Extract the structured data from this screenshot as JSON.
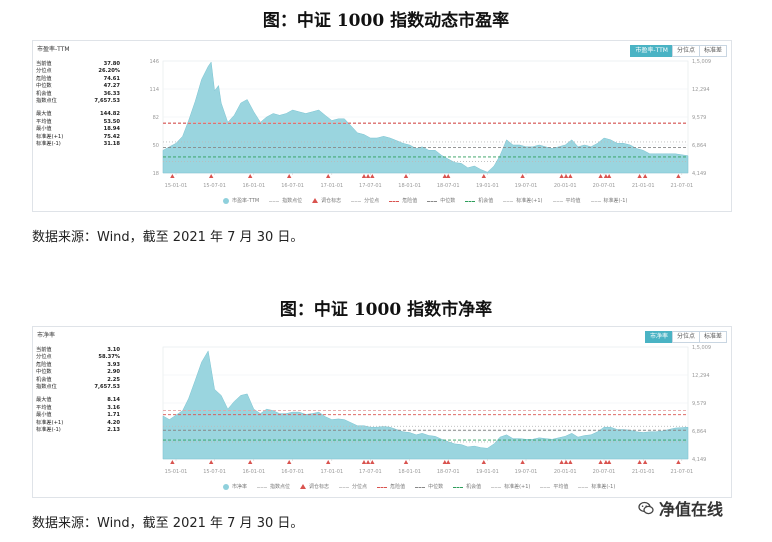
{
  "figures": [
    {
      "title": "图：中证 1000 指数动态市盈率",
      "panel_label": "市盈率-TTM",
      "buttons": [
        {
          "label": "市盈率-TTM",
          "active": true
        },
        {
          "label": "分位点",
          "active": false
        },
        {
          "label": "标准差",
          "active": false
        }
      ],
      "stats_top": [
        {
          "label": "当前值",
          "value": "37.80"
        },
        {
          "label": "分位点",
          "value": "26.20%"
        },
        {
          "label": "危险值",
          "value": "74.61"
        },
        {
          "label": "中位数",
          "value": "47.27"
        },
        {
          "label": "机会值",
          "value": "36.33"
        },
        {
          "label": "指数点位",
          "value": "7,657.53"
        }
      ],
      "stats_bottom": [
        {
          "label": "最大值",
          "value": "144.82"
        },
        {
          "label": "平均值",
          "value": "53.50"
        },
        {
          "label": "最小值",
          "value": "18.94"
        },
        {
          "label": "标准差(+1)",
          "value": "75.42"
        },
        {
          "label": "标准差(-1)",
          "value": "31.18"
        }
      ],
      "legend": [
        "市盈率-TTM",
        "指数点位",
        "调仓标志",
        "分位点",
        "危险值",
        "中位数",
        "机会值",
        "标准差(+1)",
        "平均值",
        "标准差(-1)"
      ],
      "source": "数据来源：Wind，截至 2021 年 7 月 30 日。"
    },
    {
      "title": "图：中证 1000 指数市净率",
      "panel_label": "市净率",
      "buttons": [
        {
          "label": "市净率",
          "active": true
        },
        {
          "label": "分位点",
          "active": false
        },
        {
          "label": "标准差",
          "active": false
        }
      ],
      "stats_top": [
        {
          "label": "当前值",
          "value": "3.10"
        },
        {
          "label": "分位点",
          "value": "58.37%"
        },
        {
          "label": "危险值",
          "value": "3.93"
        },
        {
          "label": "中位数",
          "value": "2.90"
        },
        {
          "label": "机会值",
          "value": "2.25"
        },
        {
          "label": "指数点位",
          "value": "7,657.53"
        }
      ],
      "stats_bottom": [
        {
          "label": "最大值",
          "value": "8.14"
        },
        {
          "label": "平均值",
          "value": "3.16"
        },
        {
          "label": "最小值",
          "value": "1.71"
        },
        {
          "label": "标准差(+1)",
          "value": "4.20"
        },
        {
          "label": "标准差(-1)",
          "value": "2.13"
        }
      ],
      "legend": [
        "市净率",
        "指数点位",
        "调仓标志",
        "分位点",
        "危险值",
        "中位数",
        "机会值",
        "标准差(+1)",
        "平均值",
        "标准差(-1)"
      ],
      "source": "数据来源：Wind，截至 2021 年 7 月 30 日。"
    }
  ],
  "chart_data": [
    {
      "type": "area",
      "series": [
        {
          "name": "市盈率-TTM",
          "color": "#8fd0dc"
        }
      ],
      "x_ticks": [
        "15-01-01",
        "15-07-01",
        "16-01-01",
        "16-07-01",
        "17-01-01",
        "17-07-01",
        "18-01-01",
        "18-07-01",
        "19-01-01",
        "19-07-01",
        "20-01-01",
        "20-07-01",
        "21-01-01",
        "21-07-01"
      ],
      "x_range": [
        "2014-11-01",
        "2021-07-30"
      ],
      "y_left_ticks": [
        "146",
        "114",
        "82",
        "50",
        "18"
      ],
      "y_left_range": [
        18,
        146
      ],
      "y_right_ticks": [
        "1,5,009",
        "12,294",
        "9,579",
        "6,864",
        "4,149"
      ],
      "points": [
        [
          "2014-11-01",
          44
        ],
        [
          "2014-12-01",
          48
        ],
        [
          "2015-01-01",
          52
        ],
        [
          "2015-02-01",
          60
        ],
        [
          "2015-03-01",
          78
        ],
        [
          "2015-04-01",
          100
        ],
        [
          "2015-05-01",
          125
        ],
        [
          "2015-06-01",
          140
        ],
        [
          "2015-06-15",
          144.82
        ],
        [
          "2015-07-01",
          112
        ],
        [
          "2015-07-20",
          118
        ],
        [
          "2015-08-01",
          98
        ],
        [
          "2015-09-01",
          76
        ],
        [
          "2015-10-01",
          84
        ],
        [
          "2015-11-01",
          98
        ],
        [
          "2015-12-01",
          102
        ],
        [
          "2016-01-01",
          88
        ],
        [
          "2016-02-01",
          76
        ],
        [
          "2016-03-01",
          82
        ],
        [
          "2016-04-01",
          86
        ],
        [
          "2016-05-01",
          84
        ],
        [
          "2016-06-01",
          86
        ],
        [
          "2016-07-01",
          90
        ],
        [
          "2016-08-01",
          88
        ],
        [
          "2016-09-01",
          86
        ],
        [
          "2016-10-01",
          88
        ],
        [
          "2016-11-01",
          90
        ],
        [
          "2016-12-01",
          84
        ],
        [
          "2017-01-01",
          78
        ],
        [
          "2017-02-01",
          80
        ],
        [
          "2017-03-01",
          80
        ],
        [
          "2017-04-01",
          72
        ],
        [
          "2017-05-01",
          64
        ],
        [
          "2017-06-01",
          62
        ],
        [
          "2017-07-01",
          58
        ],
        [
          "2017-08-01",
          58
        ],
        [
          "2017-09-01",
          60
        ],
        [
          "2017-10-01",
          58
        ],
        [
          "2017-11-01",
          55
        ],
        [
          "2017-12-01",
          52
        ],
        [
          "2018-01-01",
          50
        ],
        [
          "2018-02-01",
          46
        ],
        [
          "2018-03-01",
          48
        ],
        [
          "2018-04-01",
          44
        ],
        [
          "2018-05-01",
          44
        ],
        [
          "2018-06-01",
          38
        ],
        [
          "2018-07-01",
          34
        ],
        [
          "2018-08-01",
          30
        ],
        [
          "2018-09-01",
          29
        ],
        [
          "2018-10-01",
          24
        ],
        [
          "2018-11-01",
          26
        ],
        [
          "2018-12-01",
          22
        ],
        [
          "2019-01-01",
          18.94
        ],
        [
          "2019-02-01",
          26
        ],
        [
          "2019-03-01",
          38
        ],
        [
          "2019-04-01",
          56
        ],
        [
          "2019-05-01",
          50
        ],
        [
          "2019-06-01",
          50
        ],
        [
          "2019-07-01",
          48
        ],
        [
          "2019-08-01",
          48
        ],
        [
          "2019-09-01",
          50
        ],
        [
          "2019-10-01",
          48
        ],
        [
          "2019-11-01",
          46
        ],
        [
          "2019-12-01",
          48
        ],
        [
          "2020-01-01",
          50
        ],
        [
          "2020-02-01",
          56
        ],
        [
          "2020-03-01",
          48
        ],
        [
          "2020-04-01",
          50
        ],
        [
          "2020-05-01",
          48
        ],
        [
          "2020-06-01",
          52
        ],
        [
          "2020-07-01",
          58
        ],
        [
          "2020-08-01",
          56
        ],
        [
          "2020-09-01",
          52
        ],
        [
          "2020-10-01",
          52
        ],
        [
          "2020-11-01",
          50
        ],
        [
          "2020-12-01",
          46
        ],
        [
          "2021-01-01",
          44
        ],
        [
          "2021-02-01",
          40
        ],
        [
          "2021-03-01",
          40
        ],
        [
          "2021-04-01",
          40
        ],
        [
          "2021-05-01",
          40
        ],
        [
          "2021-06-01",
          40
        ],
        [
          "2021-07-30",
          37.8
        ]
      ],
      "reference_lines": [
        {
          "name": "危险值",
          "value": 74.61,
          "color": "#d9534f",
          "style": "dashed"
        },
        {
          "name": "标准差(+1)",
          "value": 75.42,
          "color": "#e6a3a3",
          "style": "dashed"
        },
        {
          "name": "中位数",
          "value": 47.27,
          "color": "#888888",
          "style": "dashed"
        },
        {
          "name": "平均值",
          "value": 53.5,
          "color": "#bbbbbb",
          "style": "dotted"
        },
        {
          "name": "机会值",
          "value": 36.33,
          "color": "#2e9e5b",
          "style": "dashed"
        },
        {
          "name": "标准差(-1)",
          "value": 31.18,
          "color": "#bbbbbb",
          "style": "dotted"
        }
      ],
      "rebalance_markers": [
        "2014-12-15",
        "2015-06-15",
        "2015-12-15",
        "2016-06-15",
        "2016-12-15",
        "2017-06-01",
        "2017-06-20",
        "2017-07-10",
        "2017-12-15",
        "2018-06-15",
        "2018-07-01",
        "2018-12-15",
        "2019-06-15",
        "2019-12-15",
        "2020-01-05",
        "2020-01-25",
        "2020-06-15",
        "2020-07-10",
        "2020-07-25",
        "2020-12-15",
        "2021-01-10",
        "2021-06-15"
      ],
      "grid": true
    },
    {
      "type": "area",
      "series": [
        {
          "name": "市净率",
          "color": "#8fd0dc"
        }
      ],
      "x_ticks": [
        "15-01-01",
        "15-07-01",
        "16-01-01",
        "16-07-01",
        "17-01-01",
        "17-07-01",
        "18-01-01",
        "18-07-01",
        "19-01-01",
        "19-07-01",
        "20-01-01",
        "20-07-01",
        "21-01-01",
        "21-07-01"
      ],
      "x_range": [
        "2014-11-01",
        "2021-07-30"
      ],
      "y_left_range": [
        1.0,
        8.4
      ],
      "y_right_ticks": [
        "1,5,009",
        "12,294",
        "9,579",
        "6,864",
        "4,149"
      ],
      "points": [
        [
          "2014-11-01",
          3.85
        ],
        [
          "2014-12-01",
          3.6
        ],
        [
          "2015-01-01",
          3.9
        ],
        [
          "2015-02-01",
          4.2
        ],
        [
          "2015-03-01",
          5.0
        ],
        [
          "2015-04-01",
          6.2
        ],
        [
          "2015-05-01",
          7.4
        ],
        [
          "2015-06-01",
          8.14
        ],
        [
          "2015-07-01",
          5.6
        ],
        [
          "2015-08-01",
          5.2
        ],
        [
          "2015-09-01",
          4.3
        ],
        [
          "2015-10-01",
          4.8
        ],
        [
          "2015-11-01",
          5.2
        ],
        [
          "2015-12-01",
          5.3
        ],
        [
          "2016-01-01",
          4.3
        ],
        [
          "2016-02-01",
          4.0
        ],
        [
          "2016-03-01",
          4.3
        ],
        [
          "2016-04-01",
          4.2
        ],
        [
          "2016-05-01",
          4.0
        ],
        [
          "2016-06-01",
          4.0
        ],
        [
          "2016-07-01",
          4.1
        ],
        [
          "2016-08-01",
          4.1
        ],
        [
          "2016-09-01",
          3.95
        ],
        [
          "2016-10-01",
          4.0
        ],
        [
          "2016-11-01",
          4.1
        ],
        [
          "2016-12-01",
          3.8
        ],
        [
          "2017-01-01",
          3.6
        ],
        [
          "2017-02-01",
          3.65
        ],
        [
          "2017-03-01",
          3.6
        ],
        [
          "2017-04-01",
          3.4
        ],
        [
          "2017-05-01",
          3.2
        ],
        [
          "2017-06-01",
          3.2
        ],
        [
          "2017-07-01",
          3.1
        ],
        [
          "2017-08-01",
          3.1
        ],
        [
          "2017-09-01",
          3.15
        ],
        [
          "2017-10-01",
          3.1
        ],
        [
          "2017-11-01",
          2.95
        ],
        [
          "2017-12-01",
          2.8
        ],
        [
          "2018-01-01",
          2.75
        ],
        [
          "2018-02-01",
          2.6
        ],
        [
          "2018-03-01",
          2.7
        ],
        [
          "2018-04-01",
          2.55
        ],
        [
          "2018-05-01",
          2.5
        ],
        [
          "2018-06-01",
          2.3
        ],
        [
          "2018-07-01",
          2.15
        ],
        [
          "2018-08-01",
          2.0
        ],
        [
          "2018-09-01",
          1.95
        ],
        [
          "2018-10-01",
          1.8
        ],
        [
          "2018-11-01",
          1.85
        ],
        [
          "2018-12-01",
          1.75
        ],
        [
          "2019-01-01",
          1.71
        ],
        [
          "2019-02-01",
          2.0
        ],
        [
          "2019-03-01",
          2.45
        ],
        [
          "2019-04-01",
          2.6
        ],
        [
          "2019-05-01",
          2.35
        ],
        [
          "2019-06-01",
          2.35
        ],
        [
          "2019-07-01",
          2.3
        ],
        [
          "2019-08-01",
          2.3
        ],
        [
          "2019-09-01",
          2.4
        ],
        [
          "2019-10-01",
          2.35
        ],
        [
          "2019-11-01",
          2.3
        ],
        [
          "2019-12-01",
          2.4
        ],
        [
          "2020-01-01",
          2.5
        ],
        [
          "2020-02-01",
          2.7
        ],
        [
          "2020-03-01",
          2.45
        ],
        [
          "2020-04-01",
          2.55
        ],
        [
          "2020-05-01",
          2.6
        ],
        [
          "2020-06-01",
          2.8
        ],
        [
          "2020-07-01",
          3.1
        ],
        [
          "2020-08-01",
          3.1
        ],
        [
          "2020-09-01",
          2.95
        ],
        [
          "2020-10-01",
          2.95
        ],
        [
          "2020-11-01",
          2.9
        ],
        [
          "2020-12-01",
          2.8
        ],
        [
          "2021-01-01",
          2.75
        ],
        [
          "2021-02-01",
          2.8
        ],
        [
          "2021-03-01",
          2.8
        ],
        [
          "2021-04-01",
          2.85
        ],
        [
          "2021-05-01",
          2.95
        ],
        [
          "2021-06-01",
          3.05
        ],
        [
          "2021-07-30",
          3.1
        ]
      ],
      "reference_lines": [
        {
          "name": "危险值",
          "value": 3.93,
          "color": "#d9534f",
          "style": "dashed"
        },
        {
          "name": "标准差(+1)",
          "value": 4.2,
          "color": "#e6a3a3",
          "style": "dashed"
        },
        {
          "name": "中位数",
          "value": 2.9,
          "color": "#888888",
          "style": "dashed"
        },
        {
          "name": "平均值",
          "value": 3.16,
          "color": "#bbbbbb",
          "style": "dotted"
        },
        {
          "name": "机会值",
          "value": 2.25,
          "color": "#2e9e5b",
          "style": "dashed"
        },
        {
          "name": "标准差(-1)",
          "value": 2.13,
          "color": "#bbbbbb",
          "style": "dotted"
        }
      ],
      "rebalance_markers": [
        "2014-12-15",
        "2015-06-15",
        "2015-12-15",
        "2016-06-15",
        "2016-12-15",
        "2017-06-01",
        "2017-06-20",
        "2017-07-10",
        "2017-12-15",
        "2018-06-15",
        "2018-07-01",
        "2018-12-15",
        "2019-06-15",
        "2019-12-15",
        "2020-01-05",
        "2020-01-25",
        "2020-06-15",
        "2020-07-10",
        "2020-07-25",
        "2020-12-15",
        "2021-01-10",
        "2021-06-15"
      ],
      "grid": true
    }
  ],
  "watermark": {
    "text": "净值在线",
    "icon": "wechat-icon"
  }
}
